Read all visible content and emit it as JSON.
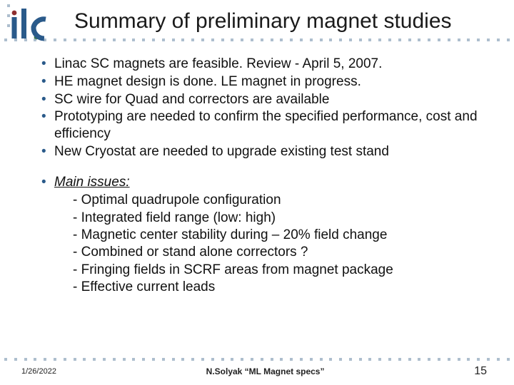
{
  "title": "Summary of preliminary magnet studies",
  "logo": {
    "text": "ilc",
    "bar_color": "#2a5a8a",
    "dot_colors": [
      "#8e2f2f",
      "#c79a3a",
      "#3a7a3a"
    ]
  },
  "bullets": [
    "Linac SC magnets are feasible. Review - April 5, 2007.",
    "HE magnet design is done. LE magnet in progress.",
    "SC wire for Quad and correctors are available",
    "Prototyping are needed to confirm the specified performance, cost and efficiency",
    "New Cryostat are needed to upgrade existing test stand"
  ],
  "issues_label": "Main issues:",
  "issues": [
    "Optimal quadrupole configuration",
    "Integrated field range (low: high)",
    "Magnetic center stability during – 20% field change",
    "Combined or stand alone correctors ?",
    "Fringing fields in SCRF areas from magnet package",
    "Effective current leads"
  ],
  "footer": {
    "date": "1/26/2022",
    "center": "N.Solyak “ML Magnet specs”",
    "page": "15"
  },
  "style": {
    "bullet_color": "#2a5a8a",
    "dot_color": "#6a89a6",
    "title_fontsize": 30,
    "body_fontsize": 19,
    "background": "#ffffff"
  }
}
